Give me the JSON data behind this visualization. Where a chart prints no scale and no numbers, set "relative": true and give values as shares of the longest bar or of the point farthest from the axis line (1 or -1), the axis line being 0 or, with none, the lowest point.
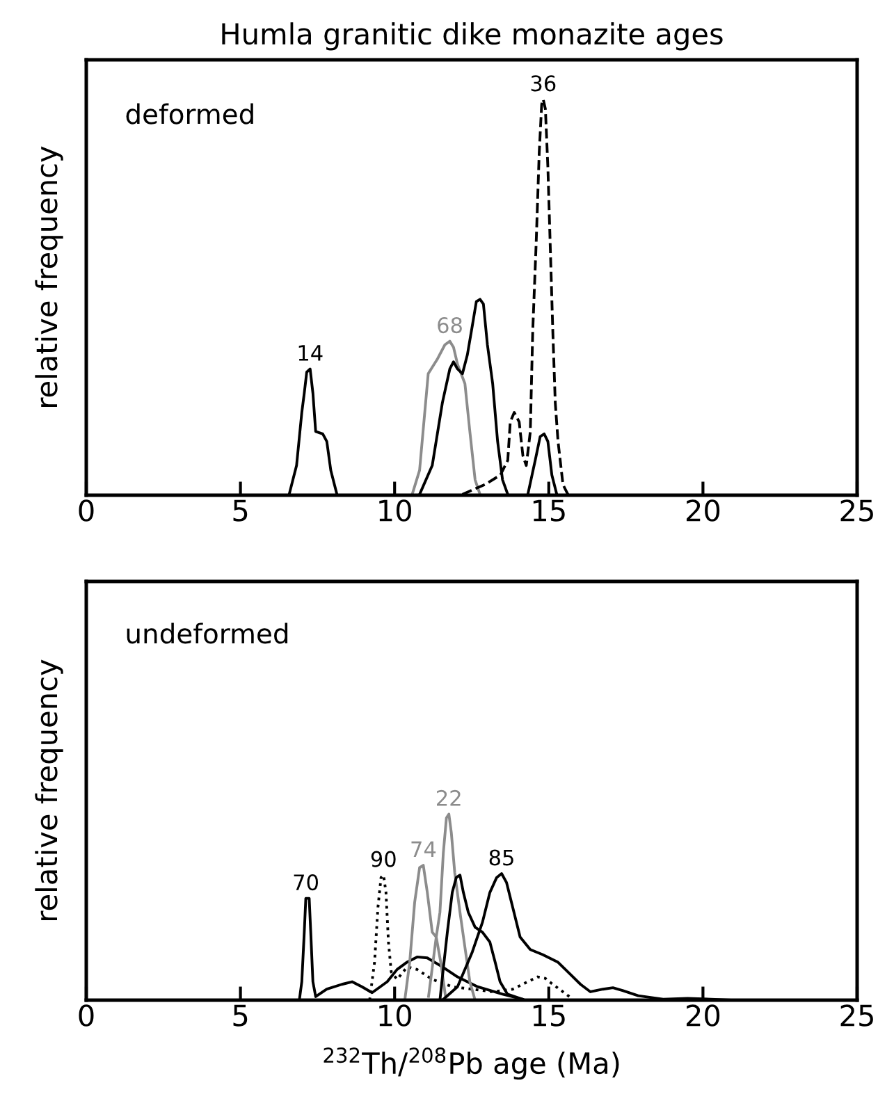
{
  "chart_data": [
    {
      "type": "line",
      "title": "Humla granitic dike monazite ages",
      "ylabel": "relative frequency",
      "relative": true,
      "xlim": [
        0,
        25
      ],
      "xticks": [
        0,
        5,
        10,
        15,
        20,
        25
      ],
      "grid": false,
      "legend": false,
      "annotations": [
        "deformed"
      ],
      "series": [
        {
          "name": "14",
          "color": "#000000",
          "line_style": "solid",
          "x": [
            6.58,
            6.82,
            6.99,
            7.07,
            7.15,
            7.26,
            7.35,
            7.44,
            7.67,
            7.8,
            7.93,
            8.13
          ],
          "values": [
            0.002,
            0.075,
            0.209,
            0.258,
            0.311,
            0.319,
            0.258,
            0.161,
            0.155,
            0.136,
            0.063,
            0.002
          ]
        },
        {
          "name": "68",
          "color": "#8c8c8c",
          "line_style": "solid",
          "x": [
            10.57,
            10.81,
            11.09,
            11.38,
            11.63,
            11.79,
            11.91,
            12.04,
            12.28,
            12.44,
            12.61,
            12.77
          ],
          "values": [
            0.002,
            0.063,
            0.307,
            0.343,
            0.38,
            0.389,
            0.374,
            0.331,
            0.282,
            0.161,
            0.039,
            0.002
          ]
        },
        {
          "color": "#000000",
          "line_style": "solid",
          "x": [
            10.81,
            11.22,
            11.55,
            11.79,
            11.91,
            12.04,
            12.2,
            12.36,
            12.52,
            12.65,
            12.77,
            12.88,
            13.01,
            13.18,
            13.34,
            13.5,
            13.67
          ],
          "values": [
            0.002,
            0.075,
            0.234,
            0.319,
            0.337,
            0.319,
            0.307,
            0.355,
            0.428,
            0.489,
            0.495,
            0.483,
            0.38,
            0.282,
            0.136,
            0.039,
            0.002
          ]
        },
        {
          "color": "#000000",
          "line_style": "solid",
          "x": [
            14.32,
            14.56,
            14.72,
            14.85,
            14.97,
            15.1,
            15.26
          ],
          "values": [
            0.002,
            0.088,
            0.148,
            0.155,
            0.136,
            0.051,
            0.002
          ]
        },
        {
          "name": "36",
          "color": "#000000",
          "line_style": "dashed",
          "x": [
            12.2,
            12.93,
            13.43,
            13.67,
            13.75,
            13.88,
            14.04,
            14.16,
            14.27,
            14.4,
            14.48,
            14.59,
            14.69,
            14.77,
            14.82,
            14.89,
            14.97,
            15.05,
            15.13,
            15.21,
            15.3,
            15.46,
            15.62
          ],
          "values": [
            0.002,
            0.027,
            0.051,
            0.088,
            0.185,
            0.209,
            0.185,
            0.1,
            0.075,
            0.16,
            0.416,
            0.635,
            0.866,
            0.988,
            1.0,
            0.976,
            0.83,
            0.623,
            0.416,
            0.234,
            0.136,
            0.027,
            0.002
          ]
        }
      ]
    },
    {
      "type": "line",
      "xlabel": "$^{232}$Th/$^{208}$Pb age (Ma)",
      "ylabel": "relative frequency",
      "relative": true,
      "xlim": [
        0,
        25
      ],
      "xticks": [
        0,
        5,
        10,
        15,
        20,
        25
      ],
      "grid": false,
      "legend": false,
      "annotations": [
        "undeformed"
      ],
      "series": [
        {
          "name": "70",
          "color": "#000000",
          "line_style": "solid",
          "x": [
            6.91,
            6.99,
            7.07,
            7.12,
            7.23,
            7.28,
            7.35,
            7.44,
            7.8,
            8.29,
            8.62,
            8.94,
            9.27,
            9.76,
            10.08,
            10.41,
            10.73,
            11.06,
            11.55,
            12.04,
            12.69,
            13.5,
            14.15
          ],
          "values": [
            0,
            0.099,
            0.365,
            0.547,
            0.547,
            0.365,
            0.099,
            0.019,
            0.059,
            0.085,
            0.099,
            0.072,
            0.04,
            0.099,
            0.165,
            0.205,
            0.232,
            0.227,
            0.179,
            0.125,
            0.072,
            0.032,
            0.005
          ]
        },
        {
          "name": "90",
          "color": "#000000",
          "line_style": "dotted",
          "x": [
            9.19,
            9.35,
            9.46,
            9.56,
            9.64,
            9.72,
            9.8,
            9.89,
            10.08,
            10.41,
            10.73,
            11.22,
            11.87,
            12.52,
            13.18,
            13.83,
            14.32,
            14.64,
            14.89,
            15.13,
            15.46,
            15.78
          ],
          "values": [
            0,
            0.205,
            0.499,
            0.659,
            0.672,
            0.579,
            0.312,
            0.152,
            0.112,
            0.179,
            0.165,
            0.112,
            0.072,
            0.059,
            0.045,
            0.059,
            0.099,
            0.125,
            0.117,
            0.085,
            0.045,
            0.005
          ]
        },
        {
          "name": "74",
          "color": "#8c8c8c",
          "line_style": "solid",
          "x": [
            10.33,
            10.49,
            10.65,
            10.81,
            10.93,
            11.06,
            11.22,
            11.35,
            11.5,
            11.65
          ],
          "values": [
            0,
            0.205,
            0.525,
            0.712,
            0.725,
            0.579,
            0.365,
            0.339,
            0.2,
            0.02
          ]
        },
        {
          "name": "22",
          "color": "#8c8c8c",
          "line_style": "solid",
          "x": [
            11.1,
            11.35,
            11.47,
            11.58,
            11.68,
            11.76,
            11.84,
            11.95,
            12.12,
            12.28,
            12.44,
            12.61
          ],
          "values": [
            0.02,
            0.339,
            0.472,
            0.792,
            0.979,
            1.0,
            0.899,
            0.685,
            0.472,
            0.285,
            0.099,
            0
          ]
        },
        {
          "color": "#000000",
          "line_style": "solid",
          "x": [
            11.47,
            11.55,
            11.71,
            11.87,
            12.0,
            12.12,
            12.23,
            12.39,
            12.61,
            12.85,
            13.09,
            13.26,
            13.42,
            13.66,
            14.15
          ],
          "values": [
            0,
            0.125,
            0.365,
            0.579,
            0.659,
            0.672,
            0.579,
            0.472,
            0.392,
            0.365,
            0.312,
            0.205,
            0.099,
            0.032,
            0.005
          ]
        },
        {
          "name": "85",
          "color": "#000000",
          "line_style": "solid",
          "x": [
            11.55,
            12.04,
            12.52,
            12.85,
            13.09,
            13.31,
            13.47,
            13.63,
            13.83,
            14.07,
            14.4,
            14.8,
            15.29,
            15.7,
            16.03,
            16.35,
            16.76,
            17.08,
            17.41,
            17.9,
            18.71,
            19.5,
            21.0
          ],
          "values": [
            0,
            0.072,
            0.259,
            0.419,
            0.579,
            0.659,
            0.68,
            0.632,
            0.499,
            0.339,
            0.272,
            0.245,
            0.205,
            0.139,
            0.085,
            0.045,
            0.059,
            0.067,
            0.051,
            0.024,
            0.005,
            0.01,
            0
          ]
        }
      ]
    }
  ]
}
